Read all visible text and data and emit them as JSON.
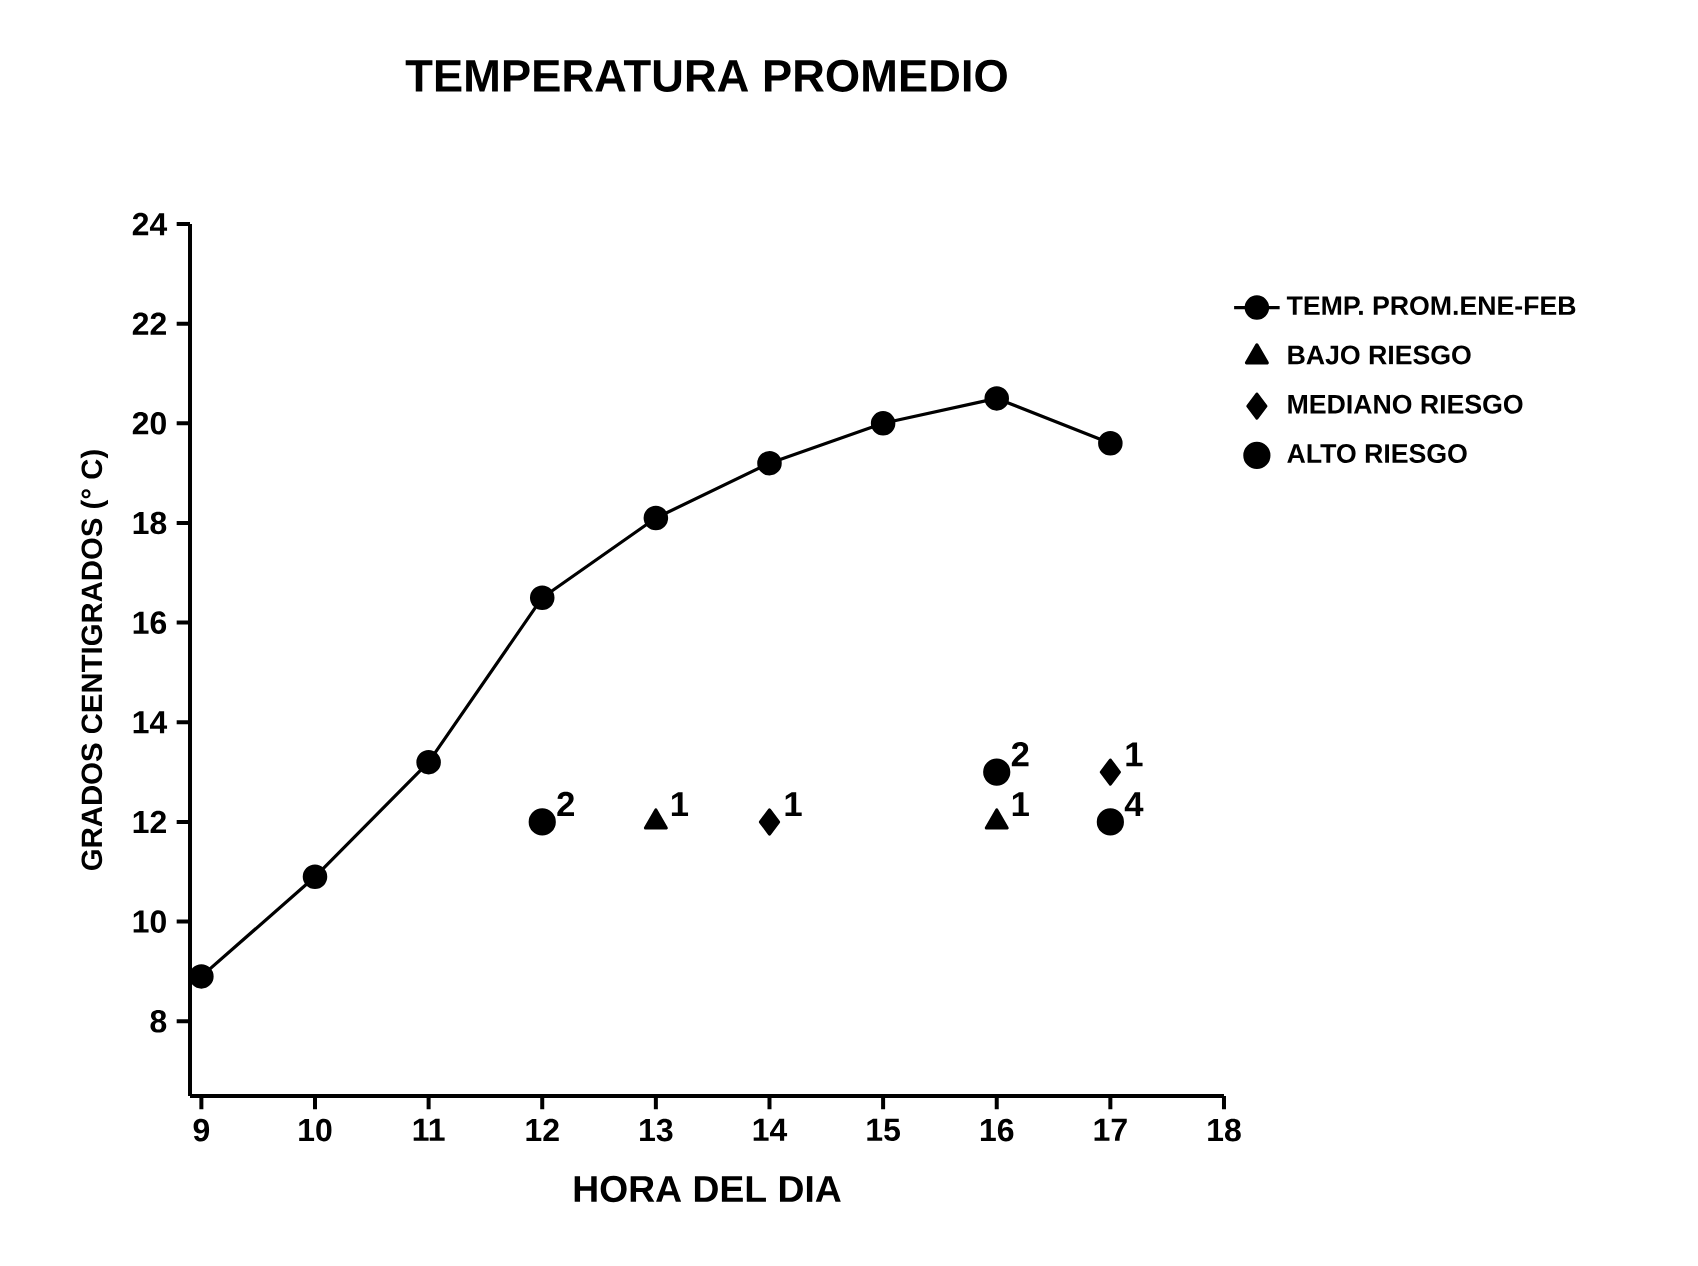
{
  "chart_data": {
    "type": "line",
    "title": "TEMPERATURA PROMEDIO",
    "xlabel": "HORA DEL DIA",
    "ylabel": "GRADOS CENTIGRADOS (° C)",
    "xlim": [
      8.9,
      18
    ],
    "ylim": [
      6.5,
      24
    ],
    "xticks": [
      9,
      10,
      11,
      12,
      13,
      14,
      15,
      16,
      17,
      18
    ],
    "yticks": [
      8,
      10,
      12,
      14,
      16,
      18,
      20,
      22,
      24
    ],
    "grid": false,
    "legend": "right",
    "series": [
      {
        "name": "TEMP. PROM.ENE-FEB",
        "marker": "circle",
        "color": "#000000",
        "x": [
          9,
          10,
          11,
          12,
          13,
          14,
          15,
          16,
          17
        ],
        "values": [
          8.9,
          10.9,
          13.2,
          16.5,
          18.1,
          19.2,
          20,
          20.5,
          19.6
        ]
      },
      {
        "name": "BAJO RIESGO",
        "type": "scatter",
        "marker": "triangle",
        "color": "#000000",
        "x": [
          13,
          16
        ],
        "values": [
          12,
          12
        ]
      },
      {
        "name": "MEDIANO RIESGO",
        "type": "scatter",
        "marker": "diamond",
        "color": "#000000",
        "x": [
          14,
          17
        ],
        "values": [
          12,
          13
        ]
      },
      {
        "name": "ALTO RIESGO",
        "type": "scatter",
        "marker": "circle",
        "color": "#000000",
        "x": [
          12,
          16,
          17
        ],
        "values": [
          12,
          13,
          12
        ]
      }
    ],
    "annotations": [
      {
        "text": "2",
        "x": 12,
        "y": 12
      },
      {
        "text": "1",
        "x": 13,
        "y": 12
      },
      {
        "text": "1",
        "x": 14,
        "y": 12
      },
      {
        "text": "2",
        "x": 16,
        "y": 13
      },
      {
        "text": "1",
        "x": 16,
        "y": 12
      },
      {
        "text": "1",
        "x": 17,
        "y": 13
      },
      {
        "text": "4",
        "x": 17,
        "y": 12
      }
    ]
  }
}
